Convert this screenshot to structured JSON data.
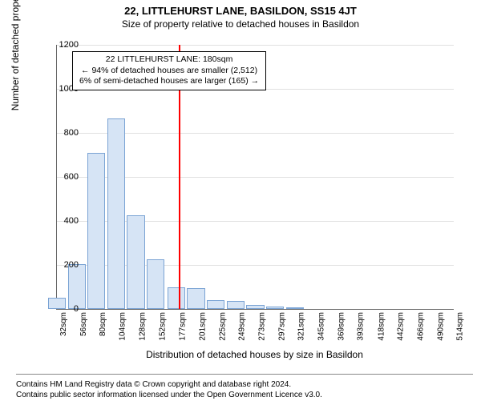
{
  "title": "22, LITTLEHURST LANE, BASILDON, SS15 4JT",
  "subtitle": "Size of property relative to detached houses in Basildon",
  "ylabel": "Number of detached properties",
  "xlabel": "Distribution of detached houses by size in Basildon",
  "annotation": {
    "line1": "22 LITTLEHURST LANE: 180sqm",
    "line2": "← 94% of detached houses are smaller (2,512)",
    "line3": "6% of semi-detached houses are larger (165) →"
  },
  "footer": {
    "line1": "Contains HM Land Registry data © Crown copyright and database right 2024.",
    "line2": "Contains public sector information licensed under the Open Government Licence v3.0."
  },
  "chart": {
    "type": "bar",
    "background_color": "#ffffff",
    "grid_color": "#e0e0e0",
    "bar_fill": "#d6e4f5",
    "bar_stroke": "#7aa3d4",
    "marker_color": "#ff0000",
    "marker_x": 180,
    "ylim": [
      0,
      1200
    ],
    "ytick_step": 200,
    "xticks": [
      32,
      56,
      80,
      104,
      128,
      152,
      177,
      201,
      225,
      249,
      273,
      297,
      321,
      345,
      369,
      393,
      418,
      442,
      466,
      490,
      514
    ],
    "xtick_suffix": "sqm",
    "bars": [
      {
        "x": 32,
        "y": 50
      },
      {
        "x": 56,
        "y": 205
      },
      {
        "x": 80,
        "y": 710
      },
      {
        "x": 104,
        "y": 865
      },
      {
        "x": 128,
        "y": 425
      },
      {
        "x": 152,
        "y": 225
      },
      {
        "x": 177,
        "y": 100
      },
      {
        "x": 201,
        "y": 95
      },
      {
        "x": 225,
        "y": 40
      },
      {
        "x": 249,
        "y": 35
      },
      {
        "x": 273,
        "y": 20
      },
      {
        "x": 297,
        "y": 12
      },
      {
        "x": 321,
        "y": 8
      }
    ],
    "label_fontsize": 12,
    "tick_fontsize": 11,
    "title_fontsize": 13
  }
}
